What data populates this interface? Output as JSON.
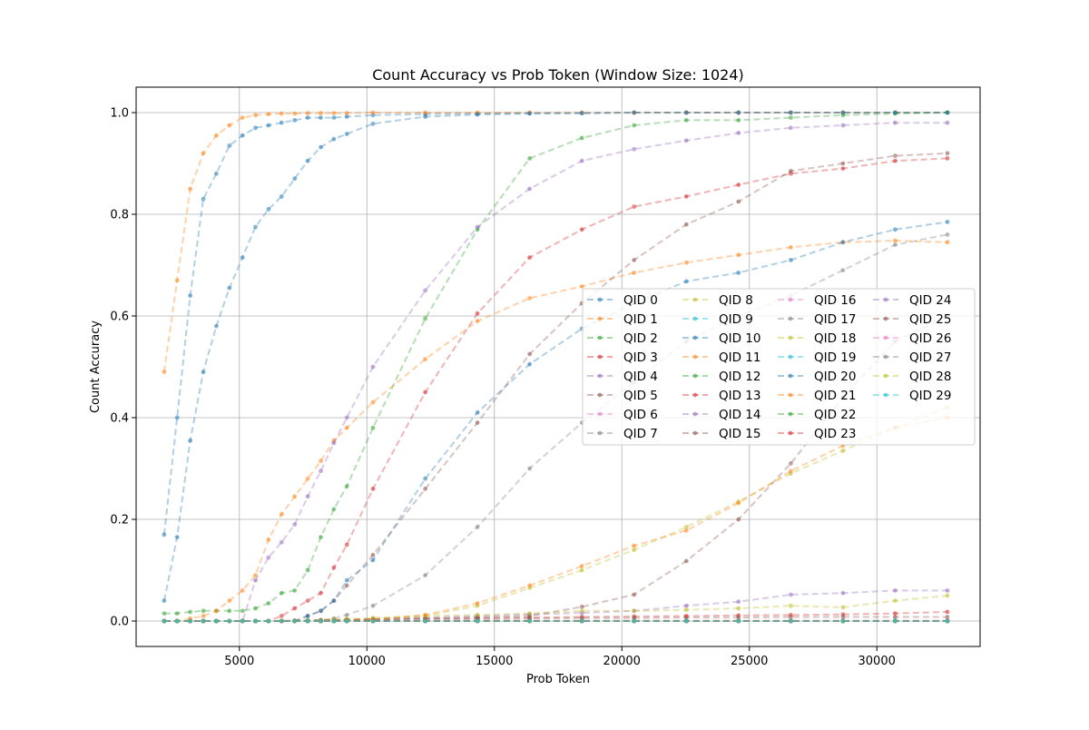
{
  "chart_data": {
    "type": "line",
    "title": "Count Accuracy vs Prob Token (Window Size: 1024)",
    "xlabel": "Prob Token",
    "ylabel": "Count Accuracy",
    "xlim": [
      950,
      34050
    ],
    "ylim": [
      -0.05,
      1.05
    ],
    "xticks": [
      5000,
      10000,
      15000,
      20000,
      25000,
      30000
    ],
    "yticks": [
      0.0,
      0.2,
      0.4,
      0.6,
      0.8,
      1.0
    ],
    "grid": true,
    "legend_position": "center-right",
    "x": [
      2048,
      2560,
      3072,
      3584,
      4096,
      4608,
      5120,
      5632,
      6144,
      6656,
      7168,
      7680,
      8192,
      8704,
      9216,
      10240,
      12288,
      14336,
      16384,
      18432,
      20480,
      22528,
      24576,
      26624,
      28672,
      30720,
      32768
    ],
    "colors": [
      "#1f77b4",
      "#ff7f0e",
      "#2ca02c",
      "#d62728",
      "#9467bd",
      "#8c564b",
      "#e377c2",
      "#7f7f7f",
      "#bcbd22",
      "#17becf"
    ],
    "series": [
      {
        "name": "QID 0",
        "values": [
          0.17,
          0.4,
          0.64,
          0.83,
          0.88,
          0.935,
          0.955,
          0.97,
          0.975,
          0.98,
          0.985,
          0.99,
          0.99,
          0.99,
          0.992,
          0.995,
          0.997,
          0.998,
          0.999,
          0.999,
          1.0,
          1.0,
          1.0,
          1.0,
          1.0,
          1.0,
          1.0
        ]
      },
      {
        "name": "QID 1",
        "values": [
          0.49,
          0.67,
          0.85,
          0.92,
          0.955,
          0.975,
          0.99,
          0.995,
          0.997,
          0.998,
          0.998,
          0.999,
          0.999,
          0.999,
          0.999,
          1.0,
          1.0,
          1.0,
          1.0,
          1.0,
          1.0,
          1.0,
          1.0,
          1.0,
          1.0,
          1.0,
          1.0
        ]
      },
      {
        "name": "QID 2",
        "values": [
          0.015,
          0.015,
          0.018,
          0.02,
          0.02,
          0.02,
          0.02,
          0.025,
          0.035,
          0.055,
          0.06,
          0.1,
          0.165,
          0.22,
          0.265,
          0.38,
          0.595,
          0.77,
          0.91,
          0.95,
          0.975,
          0.985,
          0.985,
          0.99,
          0.995,
          0.998,
          1.0
        ]
      },
      {
        "name": "QID 3",
        "values": [
          0.0,
          0.0,
          0.0,
          0.0,
          0.0,
          0.0,
          0.0,
          0.0,
          0.0,
          0.0,
          0.001,
          0.001,
          0.002,
          0.002,
          0.003,
          0.004,
          0.005,
          0.006,
          0.007,
          0.008,
          0.009,
          0.01,
          0.011,
          0.012,
          0.013,
          0.015,
          0.018
        ]
      },
      {
        "name": "QID 4",
        "values": [
          0.0,
          0.0,
          0.0,
          0.0,
          0.0,
          0.0,
          0.0,
          0.0,
          0.0,
          0.0,
          0.0,
          0.0,
          0.0,
          0.001,
          0.002,
          0.004,
          0.007,
          0.01,
          0.013,
          0.016,
          0.02,
          0.03,
          0.038,
          0.052,
          0.055,
          0.06,
          0.06
        ]
      },
      {
        "name": "QID 5",
        "values": [
          0.0,
          0.0,
          0.0,
          0.0,
          0.0,
          0.0,
          0.0,
          0.0,
          0.0,
          0.0,
          0.0,
          0.0,
          0.001,
          0.001,
          0.002,
          0.003,
          0.005,
          0.007,
          0.01,
          0.028,
          0.052,
          0.118,
          0.2,
          0.31,
          0.44,
          0.55,
          0.6
        ]
      },
      {
        "name": "QID 6",
        "values": [
          0.0,
          0.0,
          0.0,
          0.0,
          0.0,
          0.0,
          0.0,
          0.0,
          0.0,
          0.0,
          0.0,
          0.0,
          0.0,
          0.0,
          0.0,
          0.0,
          0.0,
          0.001,
          0.001,
          0.001,
          0.001,
          0.001,
          0.001,
          0.001,
          0.001,
          0.001,
          0.001
        ]
      },
      {
        "name": "QID 7",
        "values": [
          0.0,
          0.0,
          0.0,
          0.0,
          0.0,
          0.0,
          0.0,
          0.0,
          0.0,
          0.0,
          0.0,
          0.001,
          0.002,
          0.005,
          0.012,
          0.03,
          0.09,
          0.185,
          0.3,
          0.39,
          0.47,
          0.55,
          0.6,
          0.64,
          0.69,
          0.74,
          0.76
        ]
      },
      {
        "name": "QID 8",
        "values": [
          0.0,
          0.0,
          0.0,
          0.0,
          0.0,
          0.0,
          0.0,
          0.0,
          0.0,
          0.0,
          0.001,
          0.001,
          0.002,
          0.003,
          0.004,
          0.006,
          0.01,
          0.012,
          0.015,
          0.02,
          0.02,
          0.022,
          0.025,
          0.03,
          0.027,
          0.04,
          0.05
        ]
      },
      {
        "name": "QID 9",
        "values": [
          0.0,
          0.0,
          0.0,
          0.0,
          0.0,
          0.0,
          0.0,
          0.0,
          0.0,
          0.0,
          0.0,
          0.0,
          0.0,
          0.0,
          0.0,
          0.0,
          0.0,
          0.0,
          0.0,
          0.0,
          0.0,
          0.0,
          0.0,
          0.0,
          0.0,
          0.0,
          0.0
        ]
      },
      {
        "name": "QID 10",
        "values": [
          0.04,
          0.165,
          0.355,
          0.49,
          0.58,
          0.655,
          0.715,
          0.775,
          0.81,
          0.835,
          0.87,
          0.905,
          0.932,
          0.948,
          0.958,
          0.978,
          0.992,
          0.996,
          0.998,
          0.999,
          1.0,
          1.0,
          1.0,
          1.0,
          1.0,
          1.0,
          1.0
        ]
      },
      {
        "name": "QID 11",
        "values": [
          0.0,
          0.0,
          0.005,
          0.01,
          0.02,
          0.04,
          0.06,
          0.09,
          0.16,
          0.21,
          0.245,
          0.28,
          0.315,
          0.355,
          0.38,
          0.43,
          0.515,
          0.59,
          0.635,
          0.658,
          0.685,
          0.705,
          0.72,
          0.735,
          0.745,
          0.748,
          0.745
        ]
      },
      {
        "name": "QID 12",
        "values": [
          0.0,
          0.0,
          0.0,
          0.0,
          0.0,
          0.0,
          0.0,
          0.0,
          0.0,
          0.0,
          0.0,
          0.0,
          0.0,
          0.0,
          0.0,
          0.0,
          0.0,
          0.0,
          0.0,
          0.0,
          0.0,
          0.0,
          0.0,
          0.0,
          0.0,
          0.0,
          0.0
        ]
      },
      {
        "name": "QID 13",
        "values": [
          0.0,
          0.0,
          0.0,
          0.0,
          0.0,
          0.0,
          0.0,
          0.0,
          0.0,
          0.01,
          0.025,
          0.04,
          0.055,
          0.105,
          0.15,
          0.26,
          0.45,
          0.605,
          0.715,
          0.77,
          0.815,
          0.835,
          0.858,
          0.88,
          0.89,
          0.905,
          0.91
        ]
      },
      {
        "name": "QID 14",
        "values": [
          0.0,
          0.0,
          0.0,
          0.0,
          0.0,
          0.0,
          0.0,
          0.08,
          0.125,
          0.155,
          0.19,
          0.245,
          0.295,
          0.35,
          0.4,
          0.5,
          0.65,
          0.775,
          0.85,
          0.905,
          0.928,
          0.945,
          0.96,
          0.97,
          0.975,
          0.98,
          0.98
        ]
      },
      {
        "name": "QID 15",
        "values": [
          0.0,
          0.0,
          0.0,
          0.0,
          0.0,
          0.0,
          0.0,
          0.0,
          0.0,
          0.0,
          0.0,
          0.01,
          0.02,
          0.04,
          0.07,
          0.13,
          0.26,
          0.39,
          0.525,
          0.625,
          0.71,
          0.78,
          0.825,
          0.885,
          0.9,
          0.915,
          0.92
        ]
      },
      {
        "name": "QID 16",
        "values": [
          0.0,
          0.0,
          0.0,
          0.0,
          0.0,
          0.0,
          0.0,
          0.0,
          0.0,
          0.0,
          0.0,
          0.0,
          0.0,
          0.0,
          0.0,
          0.0,
          0.0,
          0.0,
          0.0,
          0.0,
          0.0,
          0.0,
          0.0,
          0.0,
          0.0,
          0.0,
          0.0
        ]
      },
      {
        "name": "QID 17",
        "values": [
          0.0,
          0.0,
          0.0,
          0.0,
          0.0,
          0.0,
          0.0,
          0.0,
          0.0,
          0.0,
          0.0,
          0.0,
          0.0,
          0.0,
          0.0,
          0.0,
          0.0,
          0.0,
          0.0,
          0.0,
          0.0,
          0.0,
          0.0,
          0.0,
          0.0,
          0.0,
          0.0
        ]
      },
      {
        "name": "QID 18",
        "values": [
          0.0,
          0.0,
          0.0,
          0.0,
          0.0,
          0.0,
          0.0,
          0.0,
          0.0,
          0.0,
          0.0,
          0.0,
          0.0,
          0.001,
          0.001,
          0.003,
          0.01,
          0.03,
          0.065,
          0.1,
          0.14,
          0.185,
          0.235,
          0.29,
          0.335,
          0.38,
          0.42
        ]
      },
      {
        "name": "QID 19",
        "values": [
          0.0,
          0.0,
          0.0,
          0.0,
          0.0,
          0.0,
          0.0,
          0.0,
          0.0,
          0.0,
          0.0,
          0.0,
          0.0,
          0.0,
          0.0,
          0.0,
          0.0,
          0.0,
          0.0,
          0.0,
          0.0,
          0.0,
          0.0,
          0.0,
          0.0,
          0.0,
          0.0
        ]
      },
      {
        "name": "QID 20",
        "values": [
          0.0,
          0.0,
          0.0,
          0.0,
          0.0,
          0.0,
          0.0,
          0.0,
          0.0,
          0.0,
          0.0,
          0.01,
          0.02,
          0.04,
          0.08,
          0.12,
          0.28,
          0.41,
          0.505,
          0.575,
          0.625,
          0.668,
          0.685,
          0.71,
          0.745,
          0.77,
          0.785
        ]
      },
      {
        "name": "QID 21",
        "values": [
          0.0,
          0.0,
          0.0,
          0.0,
          0.0,
          0.0,
          0.0,
          0.0,
          0.0,
          0.0,
          0.0,
          0.0,
          0.0,
          0.001,
          0.002,
          0.004,
          0.012,
          0.035,
          0.07,
          0.108,
          0.148,
          0.178,
          0.232,
          0.295,
          0.345,
          0.38,
          0.4
        ]
      },
      {
        "name": "QID 22",
        "values": [
          0.0,
          0.0,
          0.0,
          0.0,
          0.0,
          0.0,
          0.0,
          0.0,
          0.0,
          0.0,
          0.0,
          0.0,
          0.0,
          0.0,
          0.0,
          0.0,
          0.0,
          0.0,
          0.0,
          0.0,
          0.0,
          0.0,
          0.0,
          0.0,
          0.0,
          0.0,
          0.0
        ]
      },
      {
        "name": "QID 23",
        "values": [
          0.0,
          0.0,
          0.0,
          0.0,
          0.0,
          0.0,
          0.0,
          0.0,
          0.0,
          0.0,
          0.0,
          0.0,
          0.0,
          0.0,
          0.0,
          0.0,
          0.0,
          0.0,
          0.0,
          0.0,
          0.0,
          0.0,
          0.0,
          0.0,
          0.0,
          0.0,
          0.0
        ]
      },
      {
        "name": "QID 24",
        "values": [
          0.0,
          0.0,
          0.0,
          0.0,
          0.0,
          0.0,
          0.0,
          0.0,
          0.0,
          0.0,
          0.0,
          0.0,
          0.0,
          0.0,
          0.0,
          0.0,
          0.0,
          0.0,
          0.0,
          0.0,
          0.0,
          0.0,
          0.0,
          0.0,
          0.0,
          0.0,
          0.0
        ]
      },
      {
        "name": "QID 25",
        "values": [
          0.0,
          0.0,
          0.0,
          0.0,
          0.0,
          0.0,
          0.0,
          0.0,
          0.0,
          0.0,
          0.0,
          0.0,
          0.001,
          0.001,
          0.001,
          0.002,
          0.003,
          0.004,
          0.005,
          0.006,
          0.006,
          0.007,
          0.007,
          0.008,
          0.008,
          0.008,
          0.008
        ]
      },
      {
        "name": "QID 26",
        "values": [
          0.0,
          0.0,
          0.0,
          0.0,
          0.0,
          0.0,
          0.0,
          0.0,
          0.0,
          0.0,
          0.0,
          0.0,
          0.0,
          0.0,
          0.0,
          0.0,
          0.0,
          0.0,
          0.0,
          0.0,
          0.0,
          0.0,
          0.0,
          0.0,
          0.0,
          0.0,
          0.0
        ]
      },
      {
        "name": "QID 27",
        "values": [
          0.0,
          0.0,
          0.0,
          0.0,
          0.0,
          0.0,
          0.0,
          0.0,
          0.0,
          0.0,
          0.0,
          0.0,
          0.0,
          0.0,
          0.0,
          0.0,
          0.0,
          0.0,
          0.0,
          0.0,
          0.0,
          0.0,
          0.0,
          0.0,
          0.0,
          0.0,
          0.0
        ]
      },
      {
        "name": "QID 28",
        "values": [
          0.0,
          0.0,
          0.0,
          0.0,
          0.0,
          0.0,
          0.0,
          0.0,
          0.0,
          0.0,
          0.0,
          0.0,
          0.0,
          0.0,
          0.0,
          0.0,
          0.0,
          0.0,
          0.0,
          0.0,
          0.0,
          0.0,
          0.0,
          0.0,
          0.0,
          0.0,
          0.0
        ]
      },
      {
        "name": "QID 29",
        "values": [
          0.0,
          0.0,
          0.0,
          0.0,
          0.0,
          0.0,
          0.0,
          0.0,
          0.0,
          0.0,
          0.0,
          0.0,
          0.0,
          0.0,
          0.0,
          0.0,
          0.0,
          0.0,
          0.0,
          0.0,
          0.0,
          0.0,
          0.0,
          0.0,
          0.0,
          0.0,
          0.0
        ]
      }
    ]
  }
}
